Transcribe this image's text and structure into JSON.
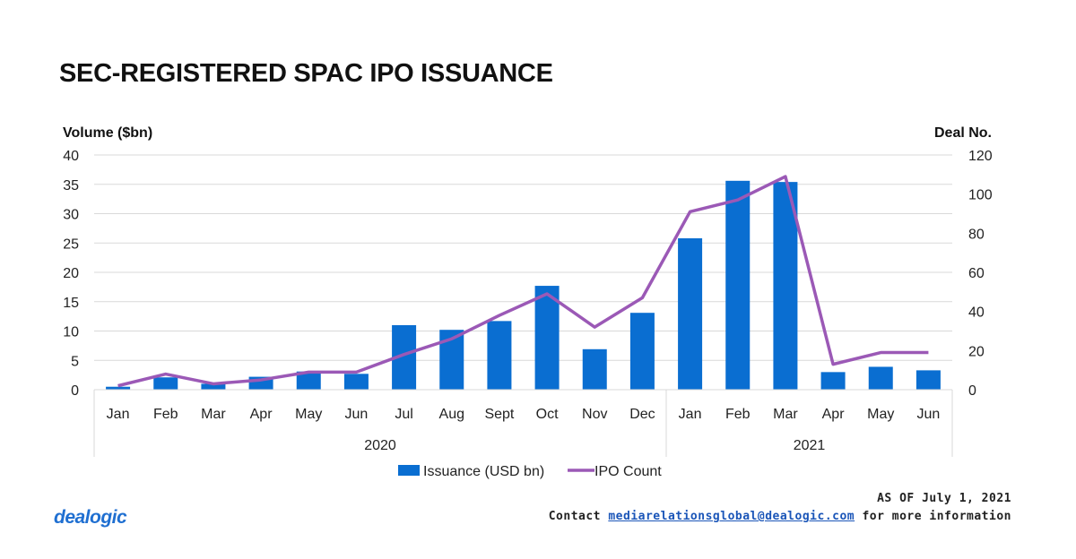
{
  "title": "SEC-REGISTERED SPAC IPO ISSUANCE",
  "footer": {
    "as_of": "AS OF July 1, 2021",
    "contact_prefix": "Contact",
    "contact_email": "mediarelationsglobal@dealogic.com",
    "contact_suffix": "for more information"
  },
  "logo_text": "dealogic",
  "colors": {
    "bar": "#0a6ed1",
    "line": "#9b59b6",
    "grid": "#d9d9d9"
  },
  "chart_data": {
    "type": "bar",
    "title": "SEC-REGISTERED SPAC IPO ISSUANCE",
    "ylabel": "Volume ($bn)",
    "y2label": "Deal No.",
    "ylim": [
      0,
      40
    ],
    "y2lim": [
      0,
      120
    ],
    "yticks": [
      0,
      5,
      10,
      15,
      20,
      25,
      30,
      35,
      40
    ],
    "y2ticks": [
      0,
      20,
      40,
      60,
      80,
      100,
      120
    ],
    "categories": [
      "Jan",
      "Feb",
      "Mar",
      "Apr",
      "May",
      "Jun",
      "Jul",
      "Aug",
      "Sept",
      "Oct",
      "Nov",
      "Dec",
      "Jan",
      "Feb",
      "Mar",
      "Apr",
      "May",
      "Jun"
    ],
    "groups": [
      {
        "label": "2020",
        "count": 12
      },
      {
        "label": "2021",
        "count": 6
      }
    ],
    "series": [
      {
        "name": "Issuance (USD bn)",
        "type": "bar",
        "axis": "left",
        "values": [
          0.5,
          2.1,
          1.0,
          2.2,
          3.1,
          2.7,
          11.0,
          10.2,
          11.7,
          17.7,
          6.9,
          13.1,
          25.8,
          35.6,
          35.4,
          3.0,
          3.9,
          3.3
        ]
      },
      {
        "name": "IPO Count",
        "type": "line",
        "axis": "right",
        "values": [
          2,
          8,
          3,
          5,
          9,
          9,
          18,
          26,
          38,
          49,
          32,
          47,
          91,
          97,
          109,
          13,
          19,
          19
        ]
      }
    ],
    "grid": true,
    "legend": "bottom"
  }
}
